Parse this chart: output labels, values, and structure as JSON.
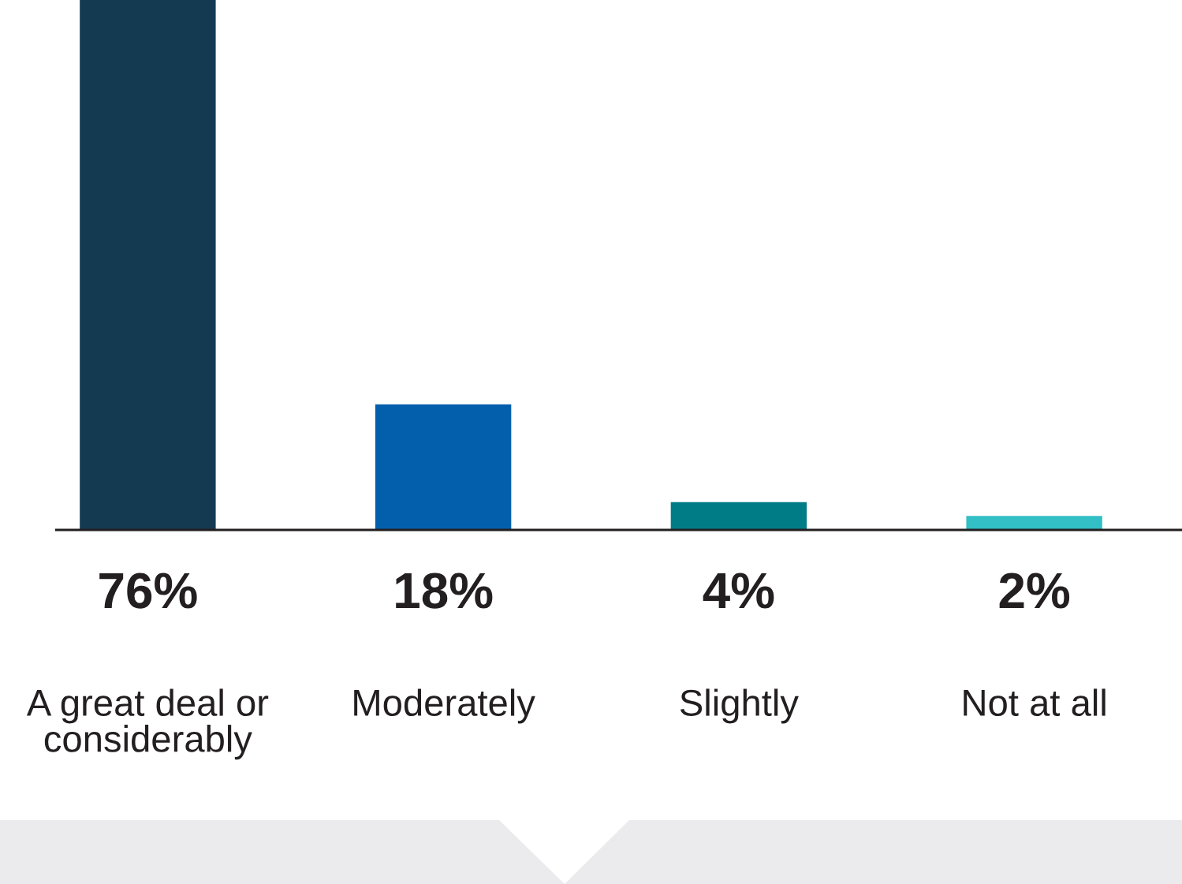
{
  "chart_data": {
    "type": "bar",
    "categories": [
      "A great deal or\nconsiderably",
      "Moderately",
      "Slightly",
      "Not at all"
    ],
    "values": [
      76,
      18,
      4,
      2
    ],
    "colors": [
      "#143a52",
      "#035fac",
      "#007c87",
      "#32bfc5"
    ],
    "value_labels": [
      "76%",
      "18%",
      "4%",
      "2%"
    ],
    "ylim": [
      0,
      76
    ],
    "tick_labels": "x",
    "grid": false,
    "legend": false
  }
}
